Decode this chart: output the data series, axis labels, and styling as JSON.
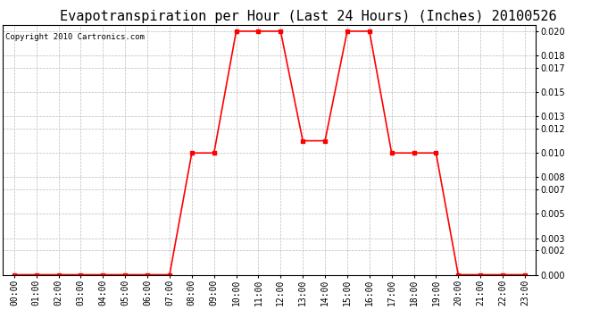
{
  "title": "Evapotranspiration per Hour (Last 24 Hours) (Inches) 20100526",
  "copyright_text": "Copyright 2010 Cartronics.com",
  "x_labels": [
    "00:00",
    "01:00",
    "02:00",
    "03:00",
    "04:00",
    "05:00",
    "06:00",
    "07:00",
    "08:00",
    "09:00",
    "10:00",
    "11:00",
    "12:00",
    "13:00",
    "14:00",
    "15:00",
    "16:00",
    "17:00",
    "18:00",
    "19:00",
    "20:00",
    "21:00",
    "22:00",
    "23:00"
  ],
  "x_values": [
    0,
    1,
    2,
    3,
    4,
    5,
    6,
    7,
    8,
    9,
    10,
    11,
    12,
    13,
    14,
    15,
    16,
    17,
    18,
    19,
    20,
    21,
    22,
    23
  ],
  "y_values": [
    0.0,
    0.0,
    0.0,
    0.0,
    0.0,
    0.0,
    0.0,
    0.0,
    0.01,
    0.01,
    0.02,
    0.02,
    0.02,
    0.011,
    0.011,
    0.02,
    0.02,
    0.01,
    0.01,
    0.01,
    0.0,
    0.0,
    0.0,
    0.0
  ],
  "line_color": "#ff0000",
  "marker": "s",
  "marker_size": 2.5,
  "line_width": 1.2,
  "background_color": "#ffffff",
  "grid_color": "#bbbbbb",
  "ylim": [
    0,
    0.0205
  ],
  "yticks": [
    0.0,
    0.002,
    0.003,
    0.005,
    0.007,
    0.008,
    0.01,
    0.012,
    0.013,
    0.015,
    0.017,
    0.018,
    0.02
  ],
  "title_fontsize": 11,
  "tick_fontsize": 7,
  "copyright_fontsize": 6.5
}
